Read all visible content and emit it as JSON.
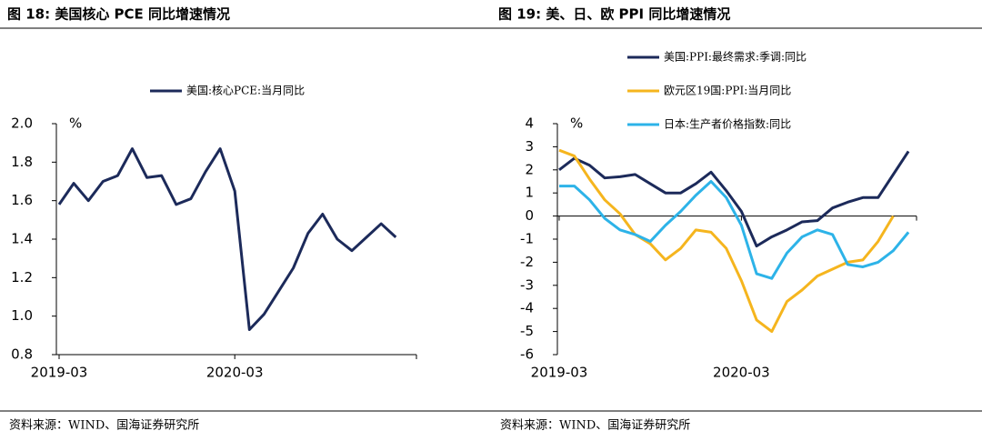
{
  "chart_data": [
    {
      "type": "line",
      "title": "图 18:  美国核心 PCE 同比增速情况",
      "y_unit": "%",
      "source": "资料来源：WIND、国海证券研究所",
      "categories": [
        "2019-03",
        null,
        null,
        null,
        null,
        null,
        null,
        null,
        null,
        null,
        null,
        null,
        "2020-03",
        null,
        null,
        null,
        null,
        null,
        null,
        null,
        null,
        null,
        null,
        null
      ],
      "series": [
        {
          "name": "美国:核心PCE:当月同比",
          "color": "#1c2a5a",
          "values": [
            1.58,
            1.69,
            1.6,
            1.7,
            1.73,
            1.87,
            1.72,
            1.73,
            1.58,
            1.61,
            1.75,
            1.87,
            1.65,
            0.93,
            1.01,
            1.13,
            1.25,
            1.43,
            1.53,
            1.4,
            1.34,
            1.41,
            1.48,
            1.41
          ]
        }
      ],
      "ylim": [
        0.8,
        2.0
      ],
      "yticks": [
        0.8,
        {
          "value": 1,
          "label": "1.0"
        },
        1.2,
        1.4,
        1.6,
        1.8,
        {
          "value": 2,
          "label": "2.0"
        }
      ],
      "legend": "top"
    },
    {
      "type": "line",
      "title": "图 19:  美、日、欧 PPI 同比增速情况",
      "y_unit": "%",
      "source": "资料来源：WIND、国海证券研究所",
      "categories": [
        "2019-03",
        null,
        null,
        null,
        null,
        null,
        null,
        null,
        null,
        null,
        null,
        null,
        "2020-03",
        null,
        null,
        null,
        null,
        null,
        null,
        null,
        null,
        null,
        null,
        null
      ],
      "series": [
        {
          "name": "美国:PPI:最终需求:季调:同比",
          "color": "#1c2a5a",
          "values": [
            2.0,
            2.5,
            2.2,
            1.65,
            1.7,
            1.8,
            1.4,
            1.0,
            1.0,
            1.4,
            1.9,
            1.1,
            0.2,
            -1.3,
            -0.9,
            -0.6,
            -0.25,
            -0.2,
            0.35,
            0.6,
            0.8,
            0.8,
            1.8,
            2.8
          ]
        },
        {
          "name": "欧元区19国:PPI:当月同比",
          "color": "#f5b51e",
          "values": [
            2.85,
            2.6,
            1.6,
            0.7,
            0.1,
            -0.8,
            -1.2,
            -1.9,
            -1.4,
            -0.6,
            -0.7,
            -1.4,
            -2.8,
            -4.5,
            -5.0,
            -3.7,
            -3.2,
            -2.6,
            -2.3,
            -2.0,
            -1.9,
            -1.1,
            0.0,
            null
          ]
        },
        {
          "name": "日本:生产者价格指数:同比",
          "color": "#2db3e8",
          "values": [
            1.3,
            1.3,
            0.7,
            -0.1,
            -0.6,
            -0.8,
            -1.1,
            -0.4,
            0.2,
            0.9,
            1.5,
            0.8,
            -0.4,
            -2.5,
            -2.7,
            -1.6,
            -0.9,
            -0.6,
            -0.8,
            -2.1,
            -2.2,
            -2.0,
            -1.5,
            -0.7
          ]
        }
      ],
      "ylim": [
        -6,
        4
      ],
      "yticks": [
        -6,
        -5,
        -4,
        -3,
        -2,
        -1,
        0,
        1,
        2,
        3,
        4
      ],
      "legend": "top left"
    }
  ]
}
